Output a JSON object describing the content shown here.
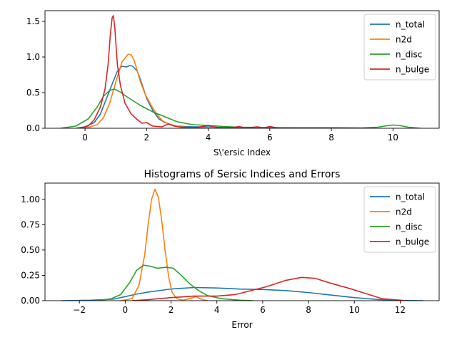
{
  "chart_data": [
    {
      "type": "line",
      "title": "",
      "xlabel": "S\\'ersic Index",
      "ylabel": "",
      "xlim": [
        -1.3,
        11.5
      ],
      "ylim": [
        0,
        1.65
      ],
      "xticks": [
        0,
        2,
        4,
        6,
        8,
        10
      ],
      "yticks": [
        0.0,
        0.5,
        1.0,
        1.5
      ],
      "xtick_labels": [
        "0",
        "2",
        "4",
        "6",
        "8",
        "10"
      ],
      "ytick_labels": [
        "0.0",
        "0.5",
        "1.0",
        "1.5"
      ],
      "legend": "top-right",
      "grid": false,
      "series": [
        {
          "name": "n_total",
          "color": "#1f77b4",
          "points": [
            [
              -0.3,
              0
            ],
            [
              0,
              0.02
            ],
            [
              0.3,
              0.08
            ],
            [
              0.5,
              0.2
            ],
            [
              0.7,
              0.42
            ],
            [
              0.9,
              0.64
            ],
            [
              1.05,
              0.8
            ],
            [
              1.2,
              0.87
            ],
            [
              1.35,
              0.86
            ],
            [
              1.45,
              0.88
            ],
            [
              1.55,
              0.87
            ],
            [
              1.7,
              0.8
            ],
            [
              1.85,
              0.62
            ],
            [
              2.0,
              0.42
            ],
            [
              2.2,
              0.25
            ],
            [
              2.4,
              0.13
            ],
            [
              2.6,
              0.08
            ],
            [
              2.8,
              0.05
            ],
            [
              3.0,
              0.03
            ],
            [
              3.5,
              0.02
            ],
            [
              4.0,
              0.02
            ],
            [
              4.5,
              0.01
            ],
            [
              5.0,
              0.005
            ],
            [
              5.5,
              0
            ]
          ]
        },
        {
          "name": "n2d",
          "color": "#ff7f0e",
          "points": [
            [
              -0.2,
              0
            ],
            [
              0.1,
              0.01
            ],
            [
              0.4,
              0.05
            ],
            [
              0.6,
              0.15
            ],
            [
              0.8,
              0.35
            ],
            [
              1.0,
              0.65
            ],
            [
              1.2,
              0.93
            ],
            [
              1.4,
              1.04
            ],
            [
              1.5,
              1.03
            ],
            [
              1.6,
              0.95
            ],
            [
              1.8,
              0.65
            ],
            [
              1.95,
              0.48
            ],
            [
              2.15,
              0.32
            ],
            [
              2.3,
              0.22
            ],
            [
              2.5,
              0.11
            ],
            [
              2.7,
              0.06
            ],
            [
              2.9,
              0.04
            ],
            [
              3.1,
              0.02
            ],
            [
              3.5,
              0.01
            ],
            [
              4.0,
              0
            ]
          ]
        },
        {
          "name": "n_disc",
          "color": "#2ca02c",
          "points": [
            [
              -0.8,
              0
            ],
            [
              -0.3,
              0.03
            ],
            [
              0.1,
              0.13
            ],
            [
              0.4,
              0.3
            ],
            [
              0.6,
              0.45
            ],
            [
              0.8,
              0.53
            ],
            [
              0.95,
              0.55
            ],
            [
              1.1,
              0.52
            ],
            [
              1.4,
              0.43
            ],
            [
              1.8,
              0.32
            ],
            [
              2.2,
              0.23
            ],
            [
              2.6,
              0.16
            ],
            [
              3.0,
              0.09
            ],
            [
              3.5,
              0.05
            ],
            [
              4.0,
              0.04
            ],
            [
              4.5,
              0.025
            ],
            [
              5.0,
              0.015
            ],
            [
              6.0,
              0.01
            ],
            [
              7.0,
              0.008
            ],
            [
              8.0,
              0.008
            ],
            [
              9.0,
              0.005
            ],
            [
              9.5,
              0.015
            ],
            [
              9.8,
              0.035
            ],
            [
              10.0,
              0.045
            ],
            [
              10.2,
              0.04
            ],
            [
              10.5,
              0.015
            ],
            [
              10.9,
              0
            ]
          ]
        },
        {
          "name": "n_bulge",
          "color": "#d62728",
          "points": [
            [
              -0.2,
              0
            ],
            [
              0.1,
              0.03
            ],
            [
              0.3,
              0.12
            ],
            [
              0.5,
              0.3
            ],
            [
              0.65,
              0.55
            ],
            [
              0.75,
              0.9
            ],
            [
              0.82,
              1.3
            ],
            [
              0.88,
              1.55
            ],
            [
              0.92,
              1.58
            ],
            [
              0.97,
              1.4
            ],
            [
              1.05,
              0.9
            ],
            [
              1.15,
              0.6
            ],
            [
              1.3,
              0.35
            ],
            [
              1.5,
              0.2
            ],
            [
              1.7,
              0.12
            ],
            [
              1.85,
              0.07
            ],
            [
              2.0,
              0.08
            ],
            [
              2.2,
              0.03
            ],
            [
              2.5,
              0.02
            ],
            [
              2.7,
              0.06
            ],
            [
              2.9,
              0.03
            ],
            [
              3.2,
              0.01
            ],
            [
              3.6,
              0.01
            ],
            [
              4.0,
              0.04
            ],
            [
              4.3,
              0.01
            ],
            [
              4.8,
              0.01
            ],
            [
              5.0,
              0.025
            ],
            [
              5.2,
              0.005
            ],
            [
              5.6,
              0.02
            ],
            [
              5.8,
              0.005
            ],
            [
              6.0,
              0.025
            ],
            [
              6.3,
              0
            ]
          ]
        }
      ]
    },
    {
      "type": "line",
      "title": "Histograms of Sersic Indices and Errors",
      "xlabel": "Error",
      "ylabel": "",
      "xlim": [
        -3.5,
        13.7
      ],
      "ylim": [
        0,
        1.16
      ],
      "xticks": [
        -2,
        0,
        2,
        4,
        6,
        8,
        10,
        12
      ],
      "yticks": [
        0.0,
        0.25,
        0.5,
        0.75,
        1.0
      ],
      "xtick_labels": [
        "−2",
        "0",
        "2",
        "4",
        "6",
        "8",
        "10",
        "12"
      ],
      "ytick_labels": [
        "0.00",
        "0.25",
        "0.50",
        "0.75",
        "1.00"
      ],
      "legend": "top-right",
      "grid": false,
      "series": [
        {
          "name": "n_total",
          "color": "#1f77b4",
          "points": [
            [
              -2.8,
              0
            ],
            [
              -1.5,
              0.005
            ],
            [
              -0.5,
              0.015
            ],
            [
              0.0,
              0.04
            ],
            [
              0.5,
              0.065
            ],
            [
              1.0,
              0.085
            ],
            [
              2.0,
              0.115
            ],
            [
              3.0,
              0.13
            ],
            [
              4.0,
              0.125
            ],
            [
              5.0,
              0.115
            ],
            [
              6.0,
              0.11
            ],
            [
              7.0,
              0.1
            ],
            [
              8.0,
              0.08
            ],
            [
              9.0,
              0.055
            ],
            [
              10.0,
              0.03
            ],
            [
              11.0,
              0.012
            ],
            [
              12.0,
              0.003
            ],
            [
              13.0,
              0
            ]
          ]
        },
        {
          "name": "n2d",
          "color": "#ff7f0e",
          "points": [
            [
              -0.2,
              0
            ],
            [
              0.3,
              0.02
            ],
            [
              0.6,
              0.15
            ],
            [
              0.85,
              0.45
            ],
            [
              1.0,
              0.75
            ],
            [
              1.15,
              1.0
            ],
            [
              1.3,
              1.1
            ],
            [
              1.45,
              1.02
            ],
            [
              1.6,
              0.78
            ],
            [
              1.75,
              0.48
            ],
            [
              1.9,
              0.23
            ],
            [
              2.05,
              0.08
            ],
            [
              2.25,
              0.02
            ],
            [
              2.5,
              0.005
            ],
            [
              2.8,
              0.02
            ],
            [
              3.1,
              0.04
            ],
            [
              3.3,
              0.015
            ],
            [
              3.6,
              0
            ]
          ]
        },
        {
          "name": "n_disc",
          "color": "#2ca02c",
          "points": [
            [
              -1.2,
              0
            ],
            [
              -0.6,
              0.02
            ],
            [
              -0.2,
              0.06
            ],
            [
              0.2,
              0.18
            ],
            [
              0.5,
              0.3
            ],
            [
              0.8,
              0.35
            ],
            [
              1.1,
              0.34
            ],
            [
              1.4,
              0.32
            ],
            [
              1.8,
              0.33
            ],
            [
              2.1,
              0.32
            ],
            [
              2.4,
              0.26
            ],
            [
              2.8,
              0.17
            ],
            [
              3.2,
              0.1
            ],
            [
              3.6,
              0.05
            ],
            [
              4.2,
              0.02
            ],
            [
              5.0,
              0.005
            ],
            [
              5.6,
              0
            ]
          ]
        },
        {
          "name": "n_bulge",
          "color": "#d62728",
          "points": [
            [
              0.3,
              0
            ],
            [
              1.0,
              0.01
            ],
            [
              2.0,
              0.03
            ],
            [
              3.0,
              0.045
            ],
            [
              4.0,
              0.045
            ],
            [
              4.8,
              0.06
            ],
            [
              5.5,
              0.1
            ],
            [
              6.2,
              0.14
            ],
            [
              7.0,
              0.2
            ],
            [
              7.7,
              0.23
            ],
            [
              8.3,
              0.22
            ],
            [
              9.0,
              0.17
            ],
            [
              9.8,
              0.12
            ],
            [
              10.5,
              0.07
            ],
            [
              11.2,
              0.02
            ],
            [
              12.0,
              0.005
            ],
            [
              12.2,
              0
            ]
          ]
        }
      ]
    }
  ]
}
